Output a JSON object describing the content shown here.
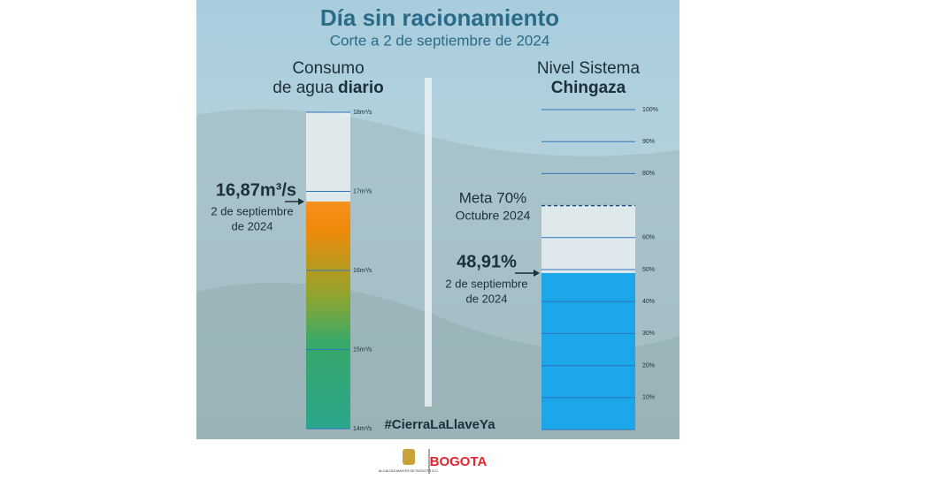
{
  "title": "Día sin racionamiento",
  "subtitle": "Corte a 2 de septiembre de 2024",
  "hashtag": "#CierraLaLlaveYa",
  "footer": {
    "org": "ALCALDÍA MAYOR DE BOGOTÁ D.C.",
    "logo": "BOGOTA"
  },
  "chart_data": [
    {
      "type": "bar",
      "title": [
        "Consumo",
        "de agua",
        "diario"
      ],
      "values": [
        16.87
      ],
      "value_labels": [
        "16,87m³/s"
      ],
      "annotation": [
        "2 de septiembre",
        "de 2024"
      ],
      "ylim": [
        14,
        18
      ],
      "yticks": [
        {
          "value": 14,
          "label": "14m³/s"
        },
        {
          "value": 15,
          "label": "15m³/s"
        },
        {
          "value": 16,
          "label": "16m³/s"
        },
        {
          "value": 17,
          "label": "17m³/s"
        },
        {
          "value": 18,
          "label": "18m³/s"
        }
      ],
      "colors": [
        "#f7901e",
        "#f08a0a",
        "#8ea52f",
        "#38a96a",
        "#2aa68c"
      ]
    },
    {
      "type": "bar",
      "title": [
        "Nivel Sistema",
        "Chingaza"
      ],
      "values": [
        48.91
      ],
      "value_labels": [
        "48,91%"
      ],
      "annotation": [
        "2 de septiembre",
        "de 2024"
      ],
      "target": 70,
      "target_label": [
        "Meta 70%",
        "Octubre 2024"
      ],
      "ylim": [
        0,
        100
      ],
      "yticks": [
        {
          "value": 10,
          "label": "10%"
        },
        {
          "value": 20,
          "label": "20%"
        },
        {
          "value": 30,
          "label": "30%"
        },
        {
          "value": 40,
          "label": "40%"
        },
        {
          "value": 50,
          "label": "50%"
        },
        {
          "value": 60,
          "label": "60%"
        },
        {
          "value": 80,
          "label": "80%"
        },
        {
          "value": 90,
          "label": "90%"
        },
        {
          "value": 100,
          "label": "100%"
        }
      ],
      "color": "#1ca7ea"
    }
  ]
}
